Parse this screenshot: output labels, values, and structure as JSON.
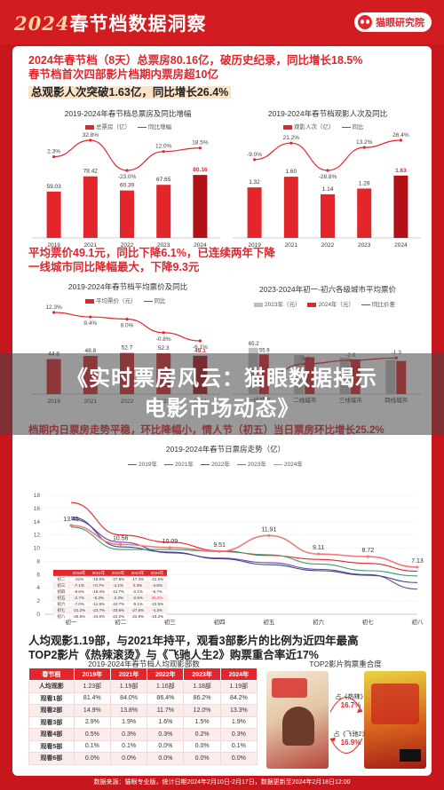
{
  "header": {
    "title_year": "2024",
    "title_text": "春节档数据洞察",
    "brand": "猫眼研究院"
  },
  "headlines": {
    "h1_line1": "2024年春节档（8天）总票房80.16亿，破历史纪录，同比增长18.5%",
    "h1_line2": "春节档首次四部影片档期内票房超10亿",
    "h2": "总观影人次突破1.63亿，同比增长26.4%",
    "h3_line1": "平均票价49.1元，同比下降6.1%，已连续两年下降",
    "h3_line2": "一线城市同比降幅最大，下降9.3元",
    "h4": "档期内日票房走势平稳，环比降幅小，情人节（初五）当日票房环比增长25.2%",
    "h5_line1": "人均观影1.19部，与2021年持平，观看3部影片的比例为近四年最高",
    "h5_line2": "TOP2影片《热辣滚烫》与《飞驰人生2》购票重合率近17%"
  },
  "overlay": {
    "line1": "《实时票房风云：猫眼数据揭示",
    "line2": "电影市场动态》"
  },
  "colors": {
    "brand_red": "#e3262c",
    "dark_red": "#b01218",
    "gray_bar": "#bfbfbf"
  },
  "chart_data": [
    {
      "type": "bar",
      "title": "2019-2024年春节档总票房及同比增幅",
      "legend": [
        "总票房（亿）",
        "同比增幅"
      ],
      "categories": [
        "2019",
        "2021",
        "2022",
        "2023",
        "2024"
      ],
      "values": [
        59.03,
        78.42,
        60.39,
        67.65,
        80.16
      ],
      "growth_pct": [
        2.3,
        32.8,
        -23.0,
        12.0,
        18.5
      ],
      "growth_labels": [
        "2.3%",
        "32.8%",
        "-23.0%",
        "12.0%",
        "18.5%"
      ]
    },
    {
      "type": "bar",
      "title": "2019-2024年春节档观影人次及同比",
      "legend": [
        "观影人次（亿）",
        "同比"
      ],
      "categories": [
        "2019",
        "2021",
        "2022",
        "2023",
        "2024"
      ],
      "values": [
        1.32,
        1.6,
        1.14,
        1.29,
        1.63
      ],
      "growth_pct": [
        -9.0,
        21.2,
        -28.8,
        13.2,
        26.4
      ],
      "growth_labels": [
        "-9.0%",
        "21.2%",
        "-28.8%",
        "13.2%",
        "26.4%"
      ]
    },
    {
      "type": "bar",
      "title": "2019-2024年春节档平均票价及同比",
      "legend": [
        "平均票价（元）",
        "同比"
      ],
      "categories": [
        "2019",
        "2021",
        "2022",
        "2023",
        "2024"
      ],
      "values": [
        44.8,
        48.8,
        52.7,
        52.3,
        49.1
      ],
      "growth_pct": [
        12.3,
        9.4,
        8.0,
        -0.8,
        -6.1
      ],
      "growth_labels": [
        "12.3%",
        "9.4%",
        "8.0%",
        "-0.8%",
        "-6.1%"
      ]
    },
    {
      "type": "bar",
      "title": "2023-2024年初一-初六各级城市平均票价",
      "legend": [
        "2023年（元）",
        "2024年（元）",
        "同比价差"
      ],
      "categories": [
        "一线城市",
        "二线城市",
        "三线城市",
        "四线城市"
      ],
      "series": [
        {
          "name": "2023年（元）",
          "values": [
            65.2,
            55.0,
            51.0,
            48.0
          ]
        },
        {
          "name": "2024年（元）",
          "values": [
            55.9,
            52.0,
            49.0,
            46.7
          ]
        }
      ],
      "diff": [
        -9.3,
        -3.0,
        -2.0,
        -1.3
      ],
      "diff_labels": [
        "-9.3",
        "-3.0",
        "-2.0",
        "-1.3"
      ]
    },
    {
      "type": "line",
      "title": "2019-2024年春节日票房走势（亿）",
      "legend": [
        "2019年",
        "2021年",
        "2022年",
        "2023年",
        "2024年"
      ],
      "x": [
        "初一",
        "初二",
        "初三",
        "初四",
        "初五",
        "初六",
        "初七",
        "初八"
      ],
      "ylim": [
        0,
        18
      ],
      "yticks": [
        0,
        2,
        4,
        6,
        8,
        10,
        12,
        14,
        16,
        18
      ],
      "series": [
        {
          "name": "2019年",
          "color": "#7a3fa0",
          "values": [
            14.4,
            10.9,
            9.3,
            8.5,
            7.8,
            6.8,
            6.0,
            3.8
          ]
        },
        {
          "name": "2021年",
          "color": "#e8232a",
          "values": [
            16.9,
            12.0,
            10.9,
            9.6,
            8.9,
            8.3,
            7.7,
            6.5
          ]
        },
        {
          "name": "2022年",
          "color": "#2f4a8c",
          "values": [
            14.7,
            10.2,
            9.4,
            8.4,
            7.5,
            6.6,
            5.9,
            4.8
          ]
        },
        {
          "name": "2023年",
          "color": "#3a9a6a",
          "values": [
            13.2,
            9.8,
            9.8,
            9.5,
            9.0,
            7.6,
            6.6,
            5.8
          ]
        },
        {
          "name": "2024年",
          "color": "#f07a7a",
          "values": [
            13.45,
            10.56,
            10.09,
            9.51,
            11.91,
            9.11,
            8.72,
            7.13
          ]
        }
      ],
      "point_labels": [
        "13.45",
        "10.56",
        "10.09",
        "9.51",
        "11.91",
        "9.11",
        "8.72",
        "7.13"
      ],
      "inset_table": {
        "header": [
          "",
          "2019年",
          "2021年",
          "2022年",
          "2023年",
          "2024年"
        ],
        "rows": [
          [
            "初二",
            "-21%",
            "-18.5%",
            "-27.8%",
            "-17.3%",
            "-21.5%"
          ],
          [
            "初三",
            "-7.1%",
            "+0.7%",
            "-4.1%",
            "0.3%",
            "-4.5%"
          ],
          [
            "初四",
            "-8.6%",
            "-19.4%",
            "-11.7%",
            "-2.1%",
            "-5.7%"
          ],
          [
            "初五",
            "-2.7%",
            "-6.2%",
            "-2.3%",
            "-2.5%",
            "25.2%"
          ],
          [
            "初六",
            "-7.0%",
            "-11.9%",
            "-10.7%",
            "-9.1%",
            "-23.5%"
          ],
          [
            "初七",
            "-21.2%",
            "-23.7%",
            "-33.6%",
            "-27.6%",
            "-4.3%"
          ],
          [
            "初八",
            "-26.5%",
            "-24.6%",
            "-22.2%",
            "-22.9%",
            "-18.2%"
          ]
        ]
      }
    },
    {
      "type": "table",
      "title": "2019-2024年春节档人均观影部数",
      "header": [
        "春节档",
        "2019年",
        "2021年",
        "2022年",
        "2023年",
        "2024年"
      ],
      "rows": [
        [
          "人均观影",
          "1.23部",
          "1.19部",
          "1.16部",
          "1.18部",
          "1.19部"
        ],
        [
          "观看1部",
          "81.4%",
          "84.0%",
          "86.4%",
          "86.2%",
          "84.2%"
        ],
        [
          "观看2部",
          "14.9%",
          "13.8%",
          "11.7%",
          "12.0%",
          "13.3%"
        ],
        [
          "观看3部",
          "2.9%",
          "1.9%",
          "1.6%",
          "1.5%",
          "1.9%"
        ],
        [
          "观看4部",
          "0.5%",
          "0.3%",
          "0.3%",
          "0.2%",
          "0.3%"
        ],
        [
          "观看5部",
          "0.1%",
          "0.1%",
          "0.0%",
          "0.0%",
          "0.1%"
        ],
        [
          "观看6部",
          "0.0%",
          "0.0%",
          "0.0%",
          "0.0%",
          "0.0%"
        ]
      ]
    },
    {
      "type": "other",
      "title": "TOP2影片购票重合度",
      "items": [
        {
          "label": "占《热辣》",
          "value": "16.7%"
        },
        {
          "label": "占《飞驰2》",
          "value": "16.9%"
        }
      ]
    }
  ],
  "footer": "数据来源：猫眼专业版，统计日期2024年2月10日-2月17日，数据更新至2024年2月18日12:00"
}
